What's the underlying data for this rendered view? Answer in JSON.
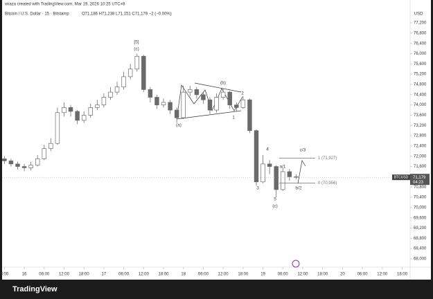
{
  "chart_data": {
    "type": "candlestick",
    "header": "xnaza created with TradingView.com, Mar 19, 2026 10:25 UTC+8",
    "legend": "Bitcoin / U.S. Dollar · 15 · Bitstamp",
    "ohlc": "O71,186 H71,238 L71,151 C71,179 −2 (−0.00%)",
    "currency": "USD",
    "symbol": "BTCUSD",
    "last_price": {
      "value": 71179,
      "label": "71,179"
    },
    "countdown": "04:23",
    "color": "#6a6a6a",
    "x": [
      -6,
      -4,
      -2,
      0,
      2,
      4,
      6,
      8,
      10,
      12,
      14,
      16,
      18,
      20,
      22,
      24,
      26,
      28,
      30,
      32,
      34,
      36,
      38,
      40,
      42,
      44,
      46,
      48,
      50,
      52,
      54,
      56,
      58,
      60,
      62,
      64,
      66,
      68,
      70,
      72,
      74,
      76,
      78,
      80,
      82
    ],
    "open": [
      71900,
      71820,
      71700,
      71600,
      71550,
      71650,
      71900,
      72300,
      72500,
      73700,
      73900,
      73750,
      73400,
      73600,
      73900,
      74000,
      74300,
      74500,
      74700,
      75100,
      75400,
      75900,
      74600,
      74300,
      74000,
      74100,
      73800,
      73500,
      74500,
      74600,
      74400,
      74200,
      73800,
      74300,
      74500,
      74000,
      73900,
      74200,
      73000,
      71000,
      71700,
      71600,
      70700,
      71400,
      71200
    ],
    "high": [
      72000,
      71900,
      71780,
      71700,
      71780,
      72050,
      72450,
      72700,
      73900,
      74100,
      74000,
      73800,
      73750,
      74050,
      74200,
      74450,
      74700,
      74900,
      75300,
      75600,
      76000,
      75950,
      74700,
      74400,
      74250,
      74200,
      73900,
      74750,
      74750,
      74700,
      74500,
      74300,
      74450,
      74650,
      74550,
      74100,
      74350,
      74250,
      73050,
      72050,
      71850,
      71650,
      71550,
      71500,
      71300
    ],
    "low": [
      71700,
      71600,
      71480,
      71420,
      71450,
      71600,
      71850,
      72200,
      72450,
      73550,
      73550,
      73250,
      73300,
      73500,
      73800,
      73900,
      74200,
      74400,
      74600,
      75000,
      75300,
      74500,
      74100,
      73850,
      73900,
      73650,
      73300,
      73450,
      74350,
      74250,
      74050,
      73650,
      73700,
      74200,
      73850,
      73750,
      73850,
      72900,
      70850,
      70950,
      71300,
      70400,
      70650,
      71050,
      71100
    ],
    "close": [
      71820,
      71700,
      71600,
      71550,
      71650,
      71900,
      72300,
      72500,
      73700,
      73900,
      73750,
      73400,
      73600,
      73900,
      74000,
      74300,
      74500,
      74700,
      75100,
      75400,
      75900,
      74600,
      74300,
      74000,
      74100,
      73800,
      73500,
      74500,
      74600,
      74400,
      74200,
      73800,
      74300,
      74500,
      74000,
      73900,
      74200,
      73000,
      71000,
      71700,
      71600,
      70700,
      71400,
      71200,
      71179
    ],
    "xlim": [
      -6.7,
      116.4
    ],
    "xticks": [
      {
        "value": -6,
        "label": "8:00"
      },
      {
        "value": 0,
        "label": "16"
      },
      {
        "value": 6,
        "label": "06:00"
      },
      {
        "value": 12,
        "label": "12:00"
      },
      {
        "value": 18,
        "label": "18:00"
      },
      {
        "value": 24,
        "label": "17"
      },
      {
        "value": 30,
        "label": "06:00"
      },
      {
        "value": 36,
        "label": "12:00"
      },
      {
        "value": 42,
        "label": "18:00"
      },
      {
        "value": 48,
        "label": "18"
      },
      {
        "value": 54,
        "label": "06:00"
      },
      {
        "value": 60,
        "label": "12:00"
      },
      {
        "value": 66,
        "label": "18:00"
      },
      {
        "value": 72,
        "label": "19"
      },
      {
        "value": 78,
        "label": "06:00"
      },
      {
        "value": 84,
        "label": "12:00"
      },
      {
        "value": 90,
        "label": "18:00"
      },
      {
        "value": 96,
        "label": "20"
      },
      {
        "value": 102,
        "label": "06:00"
      },
      {
        "value": 108,
        "label": "12:00"
      },
      {
        "value": 114,
        "label": "18:00"
      }
    ],
    "ylim": [
      67676,
      77822
    ],
    "yticks": [
      {
        "value": 77200,
        "label": "77,200"
      },
      {
        "value": 76800,
        "label": "76,800"
      },
      {
        "value": 76400,
        "label": "76,400"
      },
      {
        "value": 76000,
        "label": "76,000"
      },
      {
        "value": 75600,
        "label": "75,600"
      },
      {
        "value": 75200,
        "label": "75,200"
      },
      {
        "value": 74800,
        "label": "74,800"
      },
      {
        "value": 74400,
        "label": "74,400"
      },
      {
        "value": 74000,
        "label": "74,000"
      },
      {
        "value": 73600,
        "label": "73,600"
      },
      {
        "value": 73200,
        "label": "73,200"
      },
      {
        "value": 72800,
        "label": "72,800"
      },
      {
        "value": 72400,
        "label": "72,400"
      },
      {
        "value": 72000,
        "label": "72,000"
      },
      {
        "value": 71600,
        "label": "71,600"
      },
      {
        "value": 71200,
        "label": "71,200"
      },
      {
        "value": 70800,
        "label": "70,800"
      },
      {
        "value": 70400,
        "label": "70,400"
      },
      {
        "value": 70000,
        "label": "70,000"
      },
      {
        "value": 69600,
        "label": "69,600"
      },
      {
        "value": 69200,
        "label": "69,200"
      },
      {
        "value": 68800,
        "label": "68,800"
      },
      {
        "value": 68400,
        "label": "68,400"
      },
      {
        "value": 68000,
        "label": "68,000"
      }
    ],
    "annotations": [
      "[5]",
      "(c)",
      "(b)",
      "2",
      "1",
      "(a)",
      "4",
      "3",
      "5",
      "(c)",
      "a/1",
      "b/2",
      "c/3"
    ],
    "fib": [
      {
        "price": 71927,
        "label": "1 (71,927)"
      },
      {
        "price": 70956,
        "label": "0 (70,956)"
      }
    ],
    "footer": "TradingView"
  }
}
